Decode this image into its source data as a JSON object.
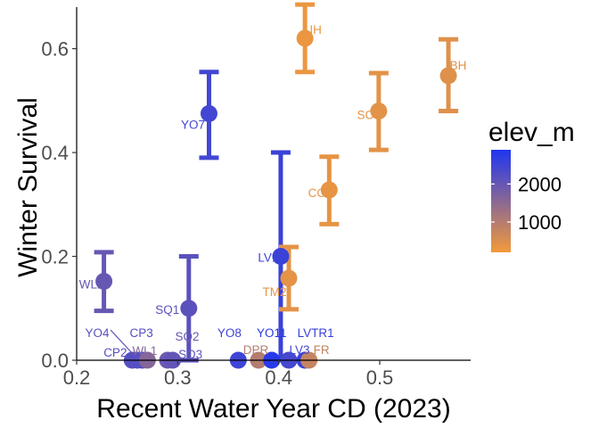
{
  "chart_data": {
    "type": "scatter",
    "xlabel": "Recent Water Year CD (2023)",
    "ylabel": "Winter Survival",
    "xlim": [
      0.2,
      0.59
    ],
    "ylim": [
      0,
      0.68
    ],
    "x_ticks": [
      0.2,
      0.3,
      0.4,
      0.5
    ],
    "x_tick_labels": [
      "0.2",
      "0.3",
      "0.4",
      "0.5"
    ],
    "y_ticks": [
      0,
      0.2,
      0.4,
      0.6
    ],
    "y_tick_labels": [
      "0.0",
      "0.2",
      "0.4",
      "0.6"
    ],
    "grid": false,
    "legend": {
      "title": "elev_m",
      "placement": "right",
      "labels": [
        "2000",
        "1000"
      ],
      "label_values": [
        2000,
        1000
      ],
      "range": [
        200,
        2900
      ],
      "color_low": "#f39a3a",
      "color_high": "#1f35f0"
    },
    "points": [
      {
        "label": "IH",
        "x": 0.426,
        "y": 0.62,
        "ymin": 0.555,
        "ymax": 0.685,
        "elev": 300
      },
      {
        "label": "BH",
        "x": 0.568,
        "y": 0.548,
        "ymin": 0.48,
        "ymax": 0.618,
        "elev": 450
      },
      {
        "label": "SC",
        "x": 0.499,
        "y": 0.48,
        "ymin": 0.405,
        "ymax": 0.553,
        "elev": 400
      },
      {
        "label": "YO7",
        "x": 0.331,
        "y": 0.475,
        "ymin": 0.39,
        "ymax": 0.555,
        "elev": 2450
      },
      {
        "label": "CC",
        "x": 0.45,
        "y": 0.328,
        "ymin": 0.262,
        "ymax": 0.392,
        "elev": 350
      },
      {
        "label": "LV1",
        "x": 0.402,
        "y": 0.2,
        "ymin": 0.0,
        "ymax": 0.4,
        "elev": 2550
      },
      {
        "label": "TM2",
        "x": 0.41,
        "y": 0.158,
        "ymin": 0.098,
        "ymax": 0.218,
        "elev": 380
      },
      {
        "label": "WL2",
        "x": 0.227,
        "y": 0.152,
        "ymin": 0.095,
        "ymax": 0.208,
        "elev": 2000
      },
      {
        "label": "SQ1",
        "x": 0.311,
        "y": 0.1,
        "ymin": 0.0,
        "ymax": 0.2,
        "elev": 2150
      },
      {
        "label": "YO4",
        "x": 0.26,
        "y": 0.0,
        "elev": 2150
      },
      {
        "label": "CP3",
        "x": 0.265,
        "y": 0.0,
        "elev": 2250
      },
      {
        "label": "CP2",
        "x": 0.255,
        "y": 0.0,
        "elev": 2200
      },
      {
        "label": "WL1",
        "x": 0.27,
        "y": 0.0,
        "elev": 1600
      },
      {
        "label": "SQ2",
        "x": 0.29,
        "y": 0.0,
        "elev": 1950
      },
      {
        "label": "SQ3",
        "x": 0.295,
        "y": 0.0,
        "elev": 2050
      },
      {
        "label": "YO8",
        "x": 0.36,
        "y": 0.0,
        "elev": 2500
      },
      {
        "label": "DPR",
        "x": 0.38,
        "y": 0.0,
        "elev": 1000
      },
      {
        "label": "YO11",
        "x": 0.393,
        "y": 0.0,
        "elev": 2800
      },
      {
        "label": "LV3",
        "x": 0.41,
        "y": 0.0,
        "elev": 2400
      },
      {
        "label": "LVTR1",
        "x": 0.426,
        "y": 0.0,
        "elev": 2600
      },
      {
        "label": "FR",
        "x": 0.43,
        "y": 0.0,
        "elev": 800
      }
    ]
  }
}
